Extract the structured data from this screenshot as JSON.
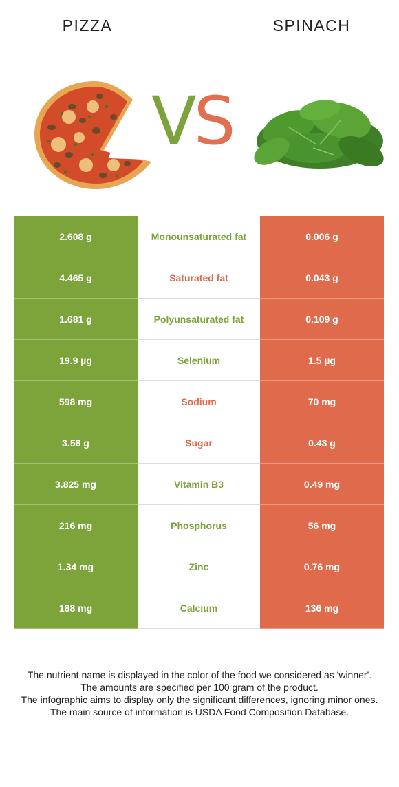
{
  "header": {
    "left_title": "PIZZA",
    "right_title": "SPINACH",
    "vs_v": "V",
    "vs_s": "S"
  },
  "colors": {
    "pizza": "#7da43a",
    "spinach": "#e06b4c"
  },
  "rows": [
    {
      "left": "2.608 g",
      "nutrient": "Monounsaturated fat",
      "winner": "left",
      "right": "0.006 g"
    },
    {
      "left": "4.465 g",
      "nutrient": "Saturated fat",
      "winner": "right",
      "right": "0.043 g"
    },
    {
      "left": "1.681 g",
      "nutrient": "Polyunsaturated fat",
      "winner": "left",
      "right": "0.109 g"
    },
    {
      "left": "19.9 µg",
      "nutrient": "Selenium",
      "winner": "left",
      "right": "1.5 µg"
    },
    {
      "left": "598 mg",
      "nutrient": "Sodium",
      "winner": "right",
      "right": "70 mg"
    },
    {
      "left": "3.58 g",
      "nutrient": "Sugar",
      "winner": "right",
      "right": "0.43 g"
    },
    {
      "left": "3.825 mg",
      "nutrient": "Vitamin B3",
      "winner": "left",
      "right": "0.49 mg"
    },
    {
      "left": "216 mg",
      "nutrient": "Phosphorus",
      "winner": "left",
      "right": "56 mg"
    },
    {
      "left": "1.34 mg",
      "nutrient": "Zinc",
      "winner": "left",
      "right": "0.76 mg"
    },
    {
      "left": "188 mg",
      "nutrient": "Calcium",
      "winner": "left",
      "right": "136 mg"
    }
  ],
  "footer": {
    "line1": "The nutrient name is displayed in the color of the food we considered as 'winner'.",
    "line2": "The amounts are specified per 100 gram of the product.",
    "line3": "The infographic aims to display only the significant differences, ignoring minor ones.",
    "line4": "The main source of information is USDA Food Composition Database."
  },
  "icons": {
    "left_image": "pizza-image",
    "right_image": "spinach-image"
  }
}
